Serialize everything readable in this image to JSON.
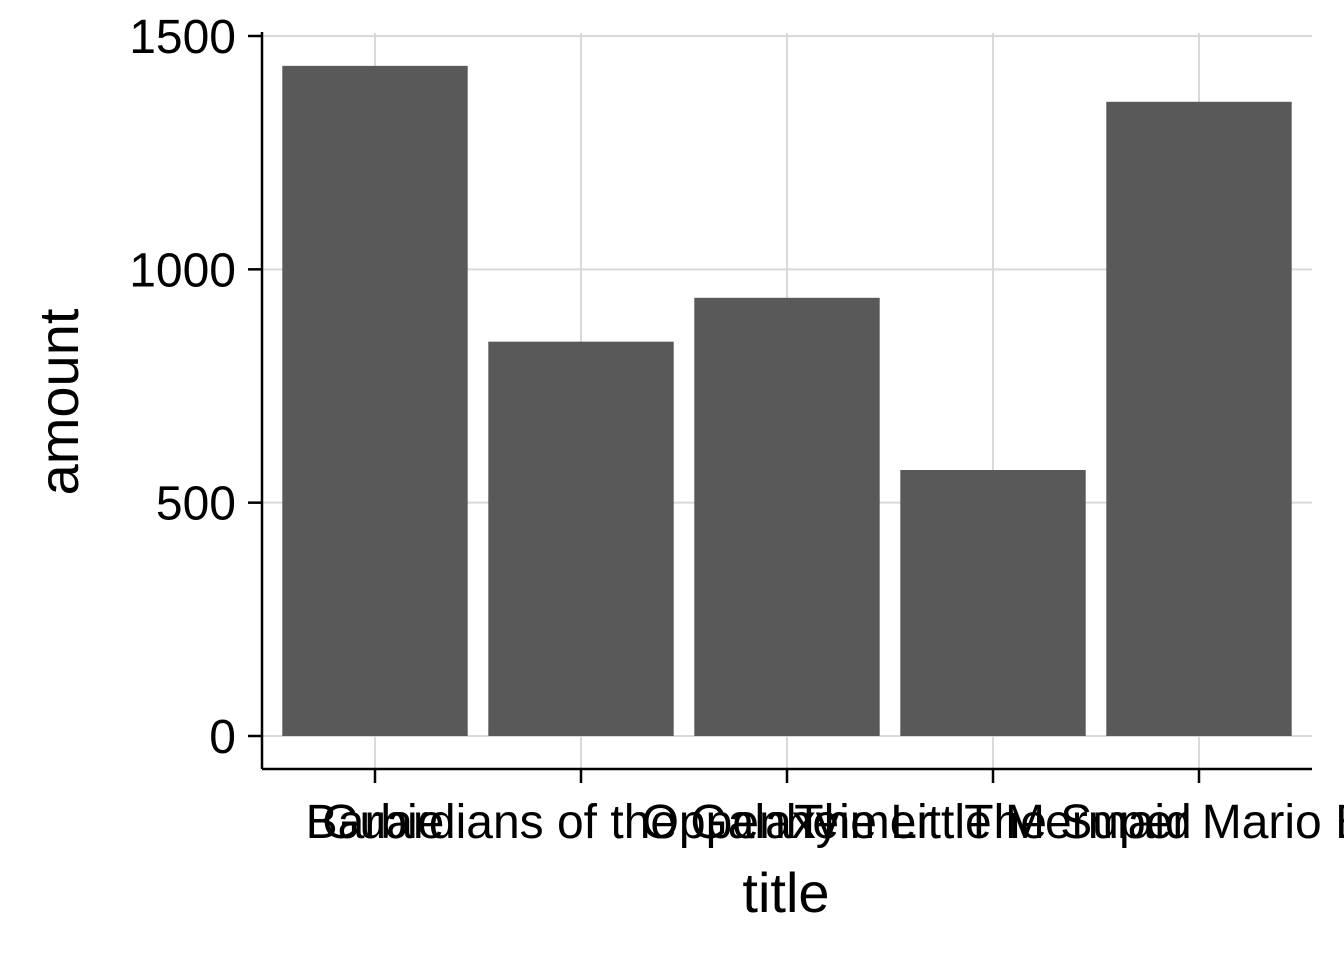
{
  "chart_data": {
    "type": "bar",
    "title": "",
    "xlabel": "title",
    "ylabel": "amount",
    "categories": [
      "Barbie",
      "Guardians of the Galaxy",
      "Oppenheimer",
      "The Little Mermaid",
      "The Super Mario Bros"
    ],
    "values": [
      1436,
      845,
      939,
      570,
      1359
    ],
    "ylim": [
      -70,
      1500
    ],
    "yticks": [
      0,
      500,
      1000,
      1500
    ],
    "grid": true,
    "legend": "none",
    "colors": {
      "bar": "#595959",
      "grid": "#d9d9d9",
      "axis": "#000000",
      "background": "#ffffff"
    }
  }
}
